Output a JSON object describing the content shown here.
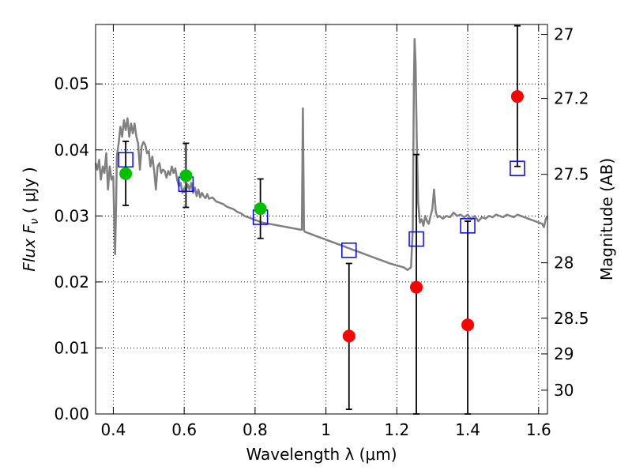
{
  "chart_data": {
    "type": "scatter",
    "title": "",
    "xlabel": "Wavelength  λ (μm)",
    "ylabel_main": "Flux  F",
    "ylabel_sub": "ν",
    "ylabel_unit": "  ( μJy )",
    "y2label": "Magnitude (AB)",
    "xlim": [
      0.35,
      1.625
    ],
    "ylim": [
      0.0,
      0.059
    ],
    "grid": true,
    "legend": "none",
    "x_ticks": [
      {
        "value": 0.4,
        "label": "0.4"
      },
      {
        "value": 0.6,
        "label": "0.6"
      },
      {
        "value": 0.8,
        "label": "0.8"
      },
      {
        "value": 1.0,
        "label": "1"
      },
      {
        "value": 1.2,
        "label": "1.2"
      },
      {
        "value": 1.4,
        "label": "1.4"
      },
      {
        "value": 1.6,
        "label": "1.6"
      }
    ],
    "y_ticks": [
      {
        "value": 0.0,
        "label": "0.00"
      },
      {
        "value": 0.01,
        "label": "0.01"
      },
      {
        "value": 0.02,
        "label": "0.02"
      },
      {
        "value": 0.03,
        "label": "0.03"
      },
      {
        "value": 0.04,
        "label": "0.04"
      },
      {
        "value": 0.05,
        "label": "0.05"
      }
    ],
    "y2_ticks": [
      {
        "flux": 0.0575,
        "label": "27"
      },
      {
        "flux": 0.0478,
        "label": "27.2"
      },
      {
        "flux": 0.0363,
        "label": "27.5"
      },
      {
        "flux": 0.0229,
        "label": "28"
      },
      {
        "flux": 0.0145,
        "label": "28.5"
      },
      {
        "flux": 0.0091,
        "label": "29"
      },
      {
        "flux": 0.0036,
        "label": "30"
      }
    ],
    "series": [
      {
        "kind": "line",
        "color": "#808080",
        "points": [
          [
            0.35,
            0.038
          ],
          [
            0.355,
            0.037
          ],
          [
            0.36,
            0.0385
          ],
          [
            0.365,
            0.0355
          ],
          [
            0.37,
            0.0375
          ],
          [
            0.375,
            0.0365
          ],
          [
            0.38,
            0.0395
          ],
          [
            0.385,
            0.034
          ],
          [
            0.39,
            0.0375
          ],
          [
            0.395,
            0.0355
          ],
          [
            0.4,
            0.036
          ],
          [
            0.403,
            0.028
          ],
          [
            0.405,
            0.0242
          ],
          [
            0.408,
            0.032
          ],
          [
            0.41,
            0.039
          ],
          [
            0.415,
            0.041
          ],
          [
            0.42,
            0.0435
          ],
          [
            0.425,
            0.042
          ],
          [
            0.43,
            0.0445
          ],
          [
            0.435,
            0.043
          ],
          [
            0.44,
            0.0448
          ],
          [
            0.445,
            0.042
          ],
          [
            0.45,
            0.044
          ],
          [
            0.455,
            0.0425
          ],
          [
            0.46,
            0.044
          ],
          [
            0.465,
            0.042
          ],
          [
            0.47,
            0.041
          ],
          [
            0.475,
            0.037
          ],
          [
            0.48,
            0.0405
          ],
          [
            0.485,
            0.0412
          ],
          [
            0.49,
            0.0408
          ],
          [
            0.495,
            0.0395
          ],
          [
            0.5,
            0.0398
          ],
          [
            0.505,
            0.0375
          ],
          [
            0.51,
            0.039
          ],
          [
            0.515,
            0.037
          ],
          [
            0.52,
            0.034
          ],
          [
            0.525,
            0.0375
          ],
          [
            0.53,
            0.038
          ],
          [
            0.535,
            0.0365
          ],
          [
            0.54,
            0.037
          ],
          [
            0.545,
            0.0368
          ],
          [
            0.55,
            0.0358
          ],
          [
            0.555,
            0.0368
          ],
          [
            0.56,
            0.0362
          ],
          [
            0.565,
            0.0375
          ],
          [
            0.57,
            0.0365
          ],
          [
            0.575,
            0.0372
          ],
          [
            0.58,
            0.0355
          ],
          [
            0.585,
            0.0345
          ],
          [
            0.59,
            0.035
          ],
          [
            0.595,
            0.0335
          ],
          [
            0.6,
            0.0342
          ],
          [
            0.605,
            0.0338
          ],
          [
            0.61,
            0.0348
          ],
          [
            0.615,
            0.034
          ],
          [
            0.62,
            0.035
          ],
          [
            0.625,
            0.0335
          ],
          [
            0.63,
            0.0343
          ],
          [
            0.635,
            0.033
          ],
          [
            0.64,
            0.034
          ],
          [
            0.645,
            0.0328
          ],
          [
            0.65,
            0.0335
          ],
          [
            0.655,
            0.033
          ],
          [
            0.66,
            0.0327
          ],
          [
            0.665,
            0.0333
          ],
          [
            0.67,
            0.0326
          ],
          [
            0.68,
            0.0328
          ],
          [
            0.69,
            0.0322
          ],
          [
            0.7,
            0.032
          ],
          [
            0.71,
            0.0318
          ],
          [
            0.72,
            0.0314
          ],
          [
            0.73,
            0.0312
          ],
          [
            0.74,
            0.031
          ],
          [
            0.75,
            0.0306
          ],
          [
            0.76,
            0.0304
          ],
          [
            0.77,
            0.03
          ],
          [
            0.78,
            0.0298
          ],
          [
            0.79,
            0.0296
          ],
          [
            0.8,
            0.0294
          ],
          [
            0.81,
            0.0292
          ],
          [
            0.82,
            0.029
          ],
          [
            0.83,
            0.0289
          ],
          [
            0.84,
            0.0288
          ],
          [
            0.85,
            0.0287
          ],
          [
            0.86,
            0.0286
          ],
          [
            0.87,
            0.0285
          ],
          [
            0.88,
            0.0284
          ],
          [
            0.89,
            0.0283
          ],
          [
            0.9,
            0.0282
          ],
          [
            0.91,
            0.0281
          ],
          [
            0.92,
            0.028
          ],
          [
            0.932,
            0.0279
          ],
          [
            0.935,
            0.0463
          ],
          [
            0.938,
            0.0279
          ],
          [
            0.94,
            0.0276
          ],
          [
            0.95,
            0.0274
          ],
          [
            0.96,
            0.0272
          ],
          [
            0.97,
            0.027
          ],
          [
            0.98,
            0.0268
          ],
          [
            0.99,
            0.0266
          ],
          [
            1.0,
            0.0264
          ],
          [
            1.02,
            0.026
          ],
          [
            1.04,
            0.0256
          ],
          [
            1.06,
            0.0252
          ],
          [
            1.08,
            0.0248
          ],
          [
            1.1,
            0.0244
          ],
          [
            1.12,
            0.024
          ],
          [
            1.14,
            0.0236
          ],
          [
            1.16,
            0.0232
          ],
          [
            1.18,
            0.0228
          ],
          [
            1.2,
            0.0225
          ],
          [
            1.22,
            0.0222
          ],
          [
            1.23,
            0.0218
          ],
          [
            1.24,
            0.0222
          ],
          [
            1.245,
            0.028
          ],
          [
            1.248,
            0.05
          ],
          [
            1.25,
            0.0568
          ],
          [
            1.253,
            0.053
          ],
          [
            1.256,
            0.042
          ],
          [
            1.26,
            0.032
          ],
          [
            1.265,
            0.029
          ],
          [
            1.27,
            0.0295
          ],
          [
            1.275,
            0.0285
          ],
          [
            1.28,
            0.03
          ],
          [
            1.285,
            0.0292
          ],
          [
            1.29,
            0.0288
          ],
          [
            1.295,
            0.03
          ],
          [
            1.3,
            0.031
          ],
          [
            1.305,
            0.034
          ],
          [
            1.31,
            0.0305
          ],
          [
            1.315,
            0.0298
          ],
          [
            1.32,
            0.03
          ],
          [
            1.33,
            0.0296
          ],
          [
            1.34,
            0.03
          ],
          [
            1.35,
            0.0298
          ],
          [
            1.36,
            0.0305
          ],
          [
            1.37,
            0.03
          ],
          [
            1.38,
            0.0302
          ],
          [
            1.39,
            0.0298
          ],
          [
            1.4,
            0.0302
          ],
          [
            1.41,
            0.0295
          ],
          [
            1.42,
            0.03
          ],
          [
            1.43,
            0.0292
          ],
          [
            1.44,
            0.0298
          ],
          [
            1.45,
            0.0296
          ],
          [
            1.46,
            0.03
          ],
          [
            1.47,
            0.0298
          ],
          [
            1.48,
            0.0302
          ],
          [
            1.49,
            0.03
          ],
          [
            1.5,
            0.0298
          ],
          [
            1.51,
            0.0302
          ],
          [
            1.52,
            0.03
          ],
          [
            1.53,
            0.0298
          ],
          [
            1.54,
            0.0302
          ],
          [
            1.55,
            0.03
          ],
          [
            1.56,
            0.0298
          ],
          [
            1.57,
            0.0296
          ],
          [
            1.58,
            0.0294
          ],
          [
            1.59,
            0.0292
          ],
          [
            1.6,
            0.029
          ],
          [
            1.61,
            0.0288
          ],
          [
            1.615,
            0.0283
          ],
          [
            1.62,
            0.0295
          ],
          [
            1.625,
            0.03
          ]
        ]
      },
      {
        "kind": "squares",
        "color": "#0000ff",
        "points": [
          [
            0.435,
            0.0385
          ],
          [
            0.605,
            0.0348
          ],
          [
            0.815,
            0.0298
          ],
          [
            1.065,
            0.0248
          ],
          [
            1.255,
            0.0265
          ],
          [
            1.4,
            0.0285
          ],
          [
            1.54,
            0.0372
          ]
        ]
      },
      {
        "kind": "circles",
        "color": "#00c000",
        "points": [
          {
            "x": 0.435,
            "y": 0.0364,
            "err_low": 0.0316,
            "err_high": 0.0413
          },
          {
            "x": 0.605,
            "y": 0.0361,
            "err_low": 0.0313,
            "err_high": 0.041
          },
          {
            "x": 0.815,
            "y": 0.0311,
            "err_low": 0.0266,
            "err_high": 0.0356
          }
        ]
      },
      {
        "kind": "circles",
        "color": "#ff0000",
        "points": [
          {
            "x": 1.065,
            "y": 0.0118,
            "err_low": 0.0007,
            "err_high": 0.0228
          },
          {
            "x": 1.255,
            "y": 0.0192,
            "err_low": 0.0,
            "err_high": 0.0393
          },
          {
            "x": 1.4,
            "y": 0.0135,
            "err_low": 0.0,
            "err_high": 0.0292
          },
          {
            "x": 1.54,
            "y": 0.0481,
            "err_low": 0.0375,
            "err_high": 0.0588
          }
        ]
      }
    ]
  }
}
